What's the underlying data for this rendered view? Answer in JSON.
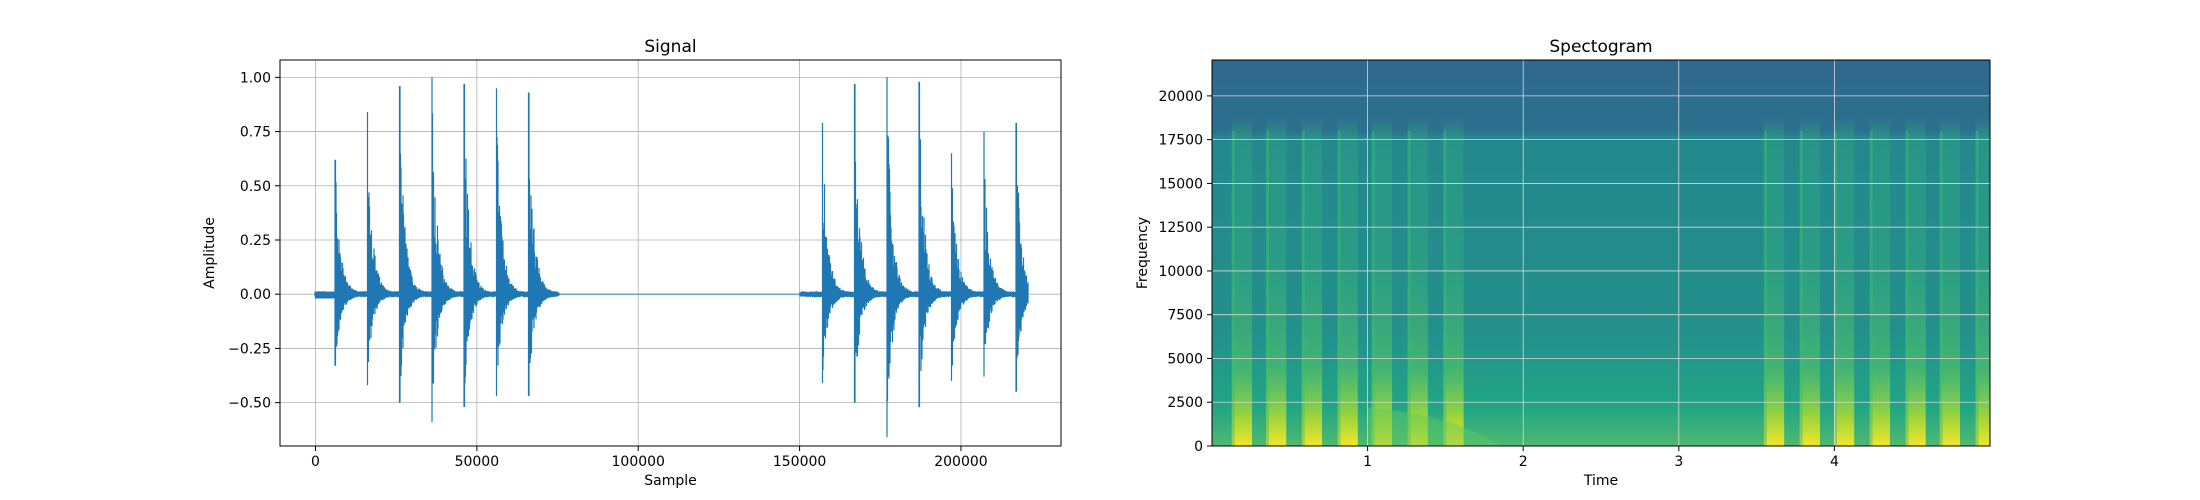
{
  "chart_data": [
    {
      "type": "line",
      "title": "Signal",
      "xlabel": "Sample",
      "ylabel": "Amplitude",
      "xlim": [
        -11000,
        231000
      ],
      "ylim": [
        -0.7,
        1.08
      ],
      "grid": true,
      "color": "#1f77b4",
      "xticks": [
        0,
        50000,
        100000,
        150000,
        200000
      ],
      "xtick_labels": [
        "0",
        "50000",
        "100000",
        "150000",
        "200000"
      ],
      "yticks": [
        -0.5,
        -0.25,
        0.0,
        0.25,
        0.5,
        0.75,
        1.0
      ],
      "ytick_labels": [
        "−0.50",
        "−0.25",
        "0.00",
        "0.25",
        "0.50",
        "0.75",
        "1.00"
      ],
      "x_range": [
        0,
        220500
      ],
      "transients": [
        {
          "x": 6000,
          "peak": 0.62,
          "trough": -0.33
        },
        {
          "x": 16000,
          "peak": 0.84,
          "trough": -0.42
        },
        {
          "x": 26000,
          "peak": 0.96,
          "trough": -0.5
        },
        {
          "x": 36000,
          "peak": 1.0,
          "trough": -0.59
        },
        {
          "x": 46000,
          "peak": 0.97,
          "trough": -0.52
        },
        {
          "x": 56000,
          "peak": 0.95,
          "trough": -0.47
        },
        {
          "x": 66000,
          "peak": 0.93,
          "trough": -0.47
        },
        {
          "x": 157000,
          "peak": 0.79,
          "trough": -0.41
        },
        {
          "x": 167000,
          "peak": 0.97,
          "trough": -0.5
        },
        {
          "x": 177000,
          "peak": 1.0,
          "trough": -0.66
        },
        {
          "x": 187000,
          "peak": 0.98,
          "trough": -0.52
        },
        {
          "x": 197000,
          "peak": 0.65,
          "trough": -0.4
        },
        {
          "x": 207000,
          "peak": 0.75,
          "trough": -0.38
        },
        {
          "x": 217000,
          "peak": 0.79,
          "trough": -0.45
        }
      ]
    },
    {
      "type": "heatmap",
      "title": "Spectogram",
      "xlabel": "Time",
      "ylabel": "Frequency",
      "xlim": [
        0.0,
        5.0
      ],
      "ylim": [
        0,
        22050
      ],
      "grid": true,
      "colormap": "viridis",
      "xticks": [
        1,
        2,
        3,
        4
      ],
      "xtick_labels": [
        "1",
        "2",
        "3",
        "4"
      ],
      "yticks": [
        0,
        2500,
        5000,
        7500,
        10000,
        12500,
        15000,
        17500,
        20000
      ],
      "ytick_labels": [
        "0",
        "2500",
        "5000",
        "7500",
        "10000",
        "12500",
        "15000",
        "17500",
        "20000"
      ],
      "cutoff_frequency": 18000,
      "onset_times": [
        0.14,
        0.36,
        0.59,
        0.82,
        1.04,
        1.27,
        1.5,
        3.56,
        3.79,
        4.01,
        4.24,
        4.47,
        4.69,
        4.92
      ]
    }
  ]
}
